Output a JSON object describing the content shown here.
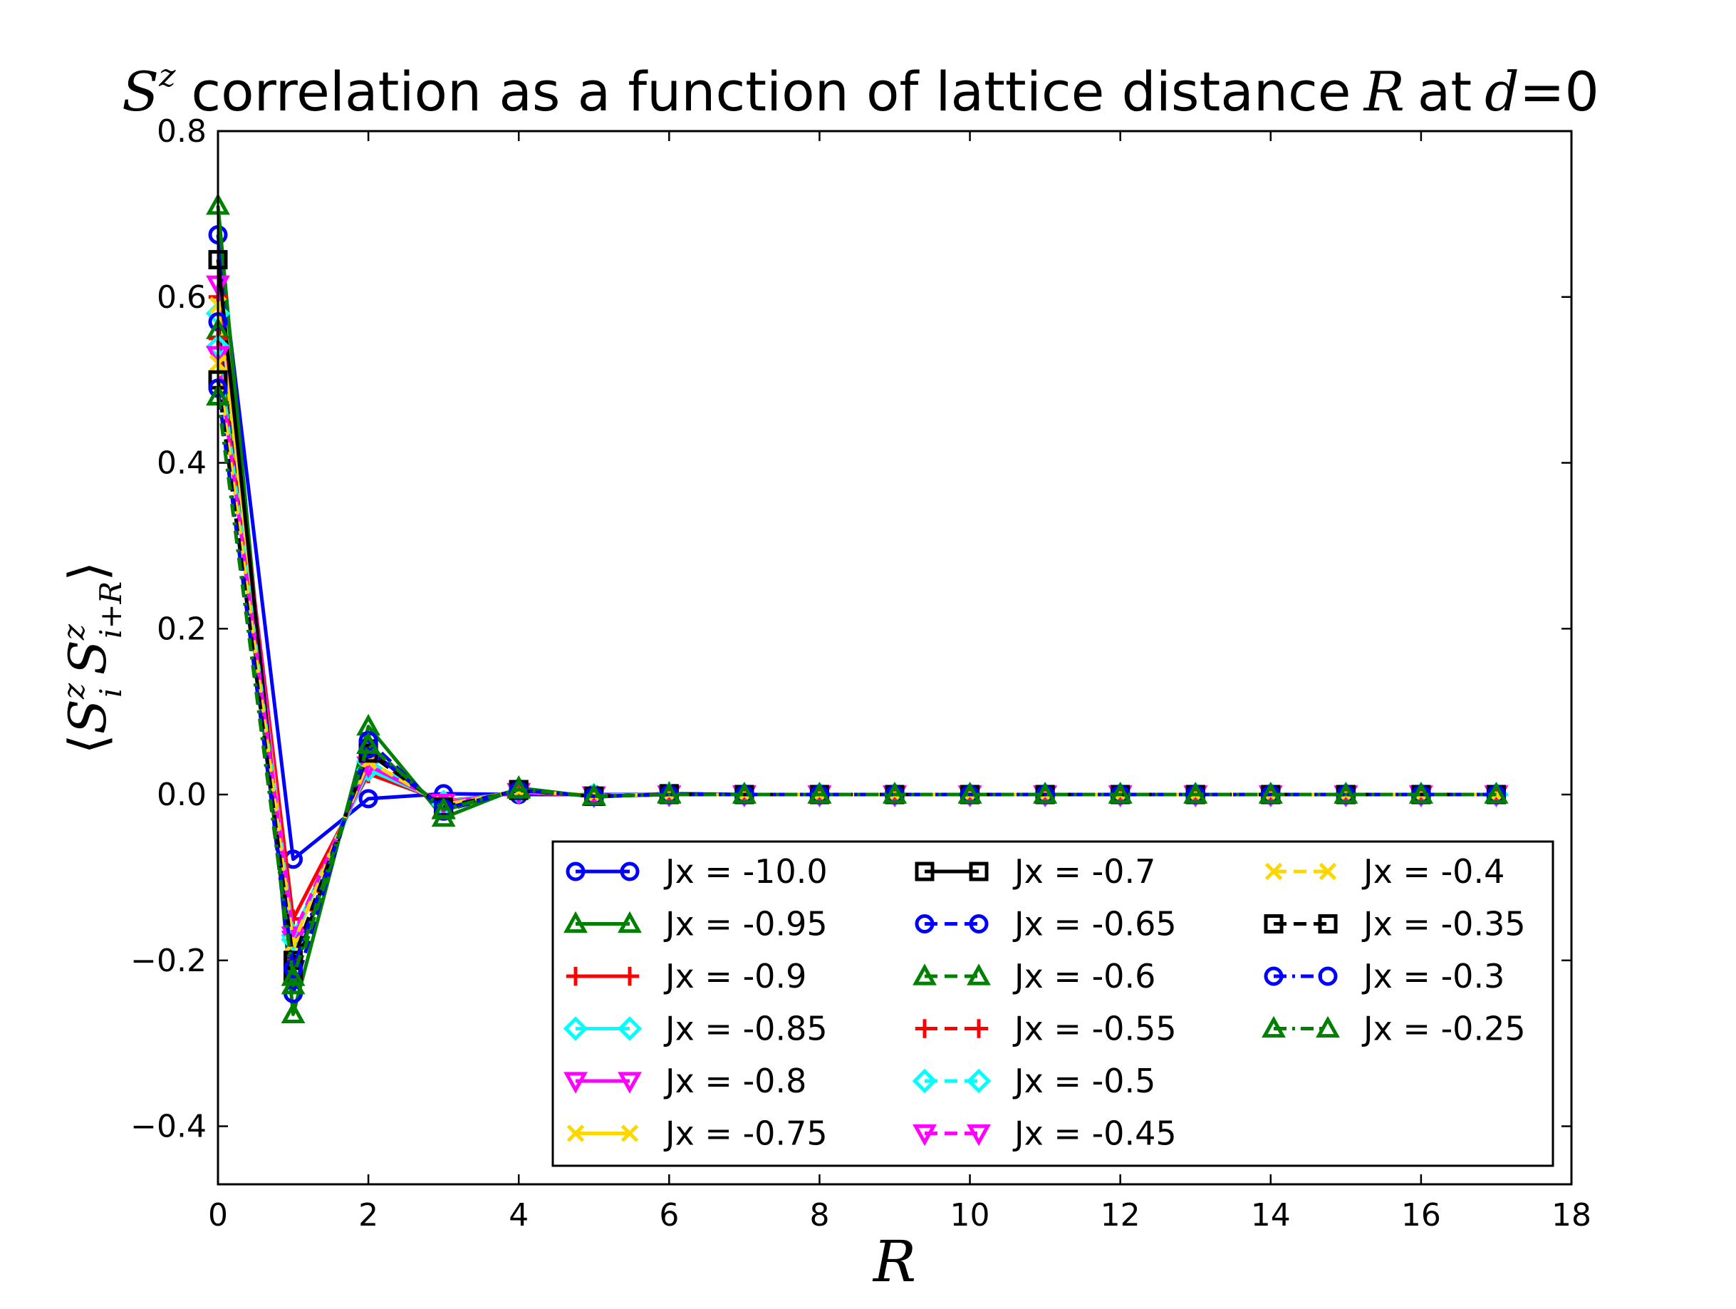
{
  "chart_data": {
    "type": "line",
    "title": {
      "sym": "S",
      "sup": "z",
      "text1": "correlation as a function of lattice distance",
      "var": "R",
      "text2": "at",
      "cond_var": "d",
      "cond_eq": "=",
      "cond_val": "0"
    },
    "xlabel": "R",
    "ylabel": {
      "open": "⟨",
      "a": "S",
      "a_sup": "z",
      "a_sub": "i",
      "b": "S",
      "b_sup": "z",
      "b_sub": "i+R",
      "close": "⟩"
    },
    "xlim": [
      0,
      18
    ],
    "ylim": [
      -0.47,
      0.8
    ],
    "xticks": [
      0,
      2,
      4,
      6,
      8,
      10,
      12,
      14,
      16,
      18
    ],
    "xtick_labels": [
      "0",
      "2",
      "4",
      "6",
      "8",
      "10",
      "12",
      "14",
      "16",
      "18"
    ],
    "yticks": [
      -0.4,
      -0.2,
      0.0,
      0.2,
      0.4,
      0.6,
      0.8
    ],
    "ytick_labels": [
      "−0.4",
      "−0.2",
      "0.0",
      "0.2",
      "0.4",
      "0.6",
      "0.8"
    ],
    "grid": false,
    "legend_position": "lower-right",
    "legend_columns": 3,
    "x": [
      0,
      1,
      2,
      3,
      4,
      5,
      6,
      7,
      8,
      9,
      10,
      11,
      12,
      13,
      14,
      15,
      16,
      17
    ],
    "series": [
      {
        "name": "Jx = -10.0",
        "color": "#0000ff",
        "marker": "circle",
        "dash": "solid",
        "values": [
          0.675,
          -0.078,
          -0.005,
          0.001,
          0.0,
          0,
          0,
          0,
          0,
          0,
          0,
          0,
          0,
          0,
          0,
          0,
          0,
          0
        ]
      },
      {
        "name": "Jx = -0.95",
        "color": "#008000",
        "marker": "triangle-up",
        "dash": "solid",
        "values": [
          0.71,
          -0.265,
          0.082,
          -0.028,
          0.008,
          -0.003,
          0.001,
          0,
          0,
          0,
          0,
          0,
          0,
          0,
          0,
          0,
          0,
          0
        ]
      },
      {
        "name": "Jx = -0.9",
        "color": "#ff0000",
        "marker": "plus",
        "dash": "solid",
        "values": [
          0.6,
          -0.15,
          0.025,
          -0.008,
          0.002,
          -0.001,
          0,
          0,
          0,
          0,
          0,
          0,
          0,
          0,
          0,
          0,
          0,
          0
        ]
      },
      {
        "name": "Jx = -0.85",
        "color": "#00ffff",
        "marker": "diamond",
        "dash": "solid",
        "values": [
          0.58,
          -0.17,
          0.03,
          -0.009,
          0.003,
          -0.001,
          0,
          0,
          0,
          0,
          0,
          0,
          0,
          0,
          0,
          0,
          0,
          0
        ]
      },
      {
        "name": "Jx = -0.8",
        "color": "#ff00ff",
        "marker": "triangle-down",
        "dash": "solid",
        "values": [
          0.615,
          -0.175,
          0.035,
          -0.01,
          0.003,
          -0.001,
          0,
          0,
          0,
          0,
          0,
          0,
          0,
          0,
          0,
          0,
          0,
          0
        ]
      },
      {
        "name": "Jx = -0.75",
        "color": "#ffd700",
        "marker": "x",
        "dash": "solid",
        "values": [
          0.59,
          -0.18,
          0.04,
          -0.012,
          0.004,
          -0.001,
          0,
          0,
          0,
          0,
          0,
          0,
          0,
          0,
          0,
          0,
          0,
          0
        ]
      },
      {
        "name": "Jx = -0.7",
        "color": "#000000",
        "marker": "square",
        "dash": "solid",
        "values": [
          0.645,
          -0.215,
          0.055,
          -0.018,
          0.006,
          -0.002,
          0.001,
          0,
          0,
          0,
          0,
          0,
          0,
          0,
          0,
          0,
          0,
          0
        ]
      },
      {
        "name": "Jx = -0.65",
        "color": "#0000ff",
        "marker": "circle",
        "dash": "dash",
        "values": [
          0.57,
          -0.24,
          0.065,
          -0.02,
          0.006,
          -0.002,
          0.001,
          0,
          0,
          0,
          0,
          0,
          0,
          0,
          0,
          0,
          0,
          0
        ]
      },
      {
        "name": "Jx = -0.6",
        "color": "#008000",
        "marker": "triangle-up",
        "dash": "dash",
        "values": [
          0.56,
          -0.23,
          0.06,
          -0.019,
          0.006,
          -0.002,
          0,
          0,
          0,
          0,
          0,
          0,
          0,
          0,
          0,
          0,
          0,
          0
        ]
      },
      {
        "name": "Jx = -0.55",
        "color": "#ff0000",
        "marker": "plus",
        "dash": "dash",
        "values": [
          0.55,
          -0.2,
          0.05,
          -0.015,
          0.005,
          -0.002,
          0,
          0,
          0,
          0,
          0,
          0,
          0,
          0,
          0,
          0,
          0,
          0
        ]
      },
      {
        "name": "Jx = -0.5",
        "color": "#00ffff",
        "marker": "diamond",
        "dash": "dash",
        "values": [
          0.54,
          -0.175,
          0.04,
          -0.012,
          0.004,
          -0.001,
          0,
          0,
          0,
          0,
          0,
          0,
          0,
          0,
          0,
          0,
          0,
          0
        ]
      },
      {
        "name": "Jx = -0.45",
        "color": "#ff00ff",
        "marker": "triangle-down",
        "dash": "dash",
        "values": [
          0.53,
          -0.17,
          0.035,
          -0.01,
          0.003,
          -0.001,
          0,
          0,
          0,
          0,
          0,
          0,
          0,
          0,
          0,
          0,
          0,
          0
        ]
      },
      {
        "name": "Jx = -0.4",
        "color": "#ffd700",
        "marker": "x",
        "dash": "dash",
        "values": [
          0.52,
          -0.18,
          0.04,
          -0.012,
          0.004,
          -0.001,
          0,
          0,
          0,
          0,
          0,
          0,
          0,
          0,
          0,
          0,
          0,
          0
        ]
      },
      {
        "name": "Jx = -0.35",
        "color": "#000000",
        "marker": "square",
        "dash": "dash",
        "values": [
          0.5,
          -0.2,
          0.05,
          -0.015,
          0.005,
          -0.002,
          0,
          0,
          0,
          0,
          0,
          0,
          0,
          0,
          0,
          0,
          0,
          0
        ]
      },
      {
        "name": "Jx = -0.3",
        "color": "#0000ff",
        "marker": "circle",
        "dash": "dashdot",
        "values": [
          0.49,
          -0.21,
          0.055,
          -0.017,
          0.005,
          -0.002,
          0,
          0,
          0,
          0,
          0,
          0,
          0,
          0,
          0,
          0,
          0,
          0
        ]
      },
      {
        "name": "Jx = -0.25",
        "color": "#008000",
        "marker": "triangle-up",
        "dash": "dashdot",
        "values": [
          0.48,
          -0.22,
          0.06,
          -0.018,
          0.006,
          -0.002,
          0,
          0,
          0,
          0,
          0,
          0,
          0,
          0,
          0,
          0,
          0,
          0
        ]
      }
    ]
  }
}
